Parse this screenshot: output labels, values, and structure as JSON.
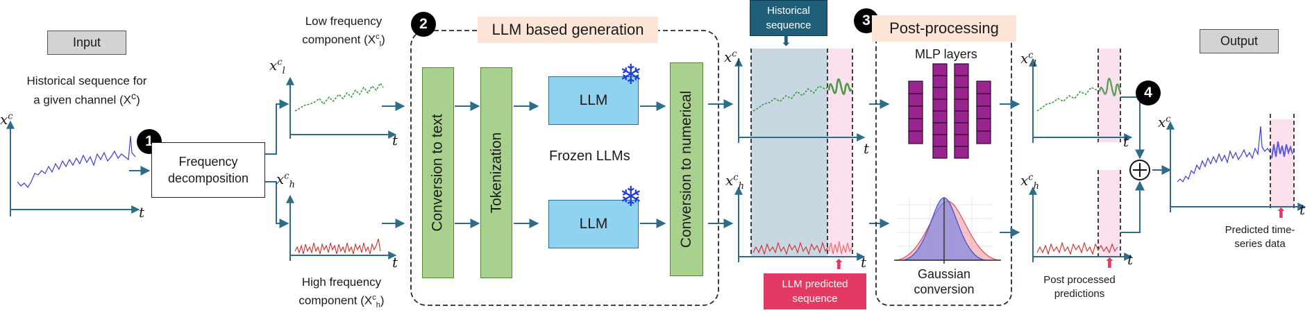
{
  "input_label": "Input",
  "output_label": "Output",
  "hist_label_line1": "Historical sequence for",
  "hist_label_line2": "a given channel (X",
  "hist_label_sup": "c",
  "hist_label_end": ")",
  "step1": "1",
  "step2": "2",
  "step3": "3",
  "step4": "4",
  "freq_decomp_line1": "Frequency",
  "freq_decomp_line2": "decomposition",
  "low_freq_line1": "Low frequency",
  "low_freq_line2": "component (X",
  "low_sub": "l",
  "high_freq_line1": "High frequency",
  "high_freq_line2": "component (X",
  "high_sub": "h",
  "comp_sup": "c",
  "paren_close": ")",
  "llm_gen_title": "LLM based generation",
  "conv_text": "Conversion to text",
  "tokenization": "Tokenization",
  "llm_top": "LLM",
  "llm_bottom": "LLM",
  "frozen_llms": "Frozen LLMs",
  "conv_numerical": "Conversion to numerical",
  "historical_seq_line1": "Historical",
  "historical_seq_line2": "sequence",
  "llm_pred_line1": "LLM predicted",
  "llm_pred_line2": "sequence",
  "post_title": "Post-processing",
  "mlp_layers": "MLP layers",
  "gaussian_line1": "Gaussian",
  "gaussian_line2": "conversion",
  "post_pred_line1": "Post processed",
  "post_pred_line2": "predictions",
  "pred_ts_line1": "Predicted time-",
  "pred_ts_line2": "series data",
  "axis_x": "x",
  "axis_t": "t",
  "colors": {
    "arrow": "#2e6d8a",
    "low_series": "#3a9a3a",
    "high_series": "#d42a2a",
    "input_series": "#3b3bd6",
    "mlp": "#9b2590",
    "pink_shade": "#fbe1ee",
    "blue_shade": "#c7d8e2"
  },
  "icons": [
    "snowflake-icon",
    "plus-circle-icon",
    "down-arrow-icon",
    "up-arrow-icon"
  ]
}
